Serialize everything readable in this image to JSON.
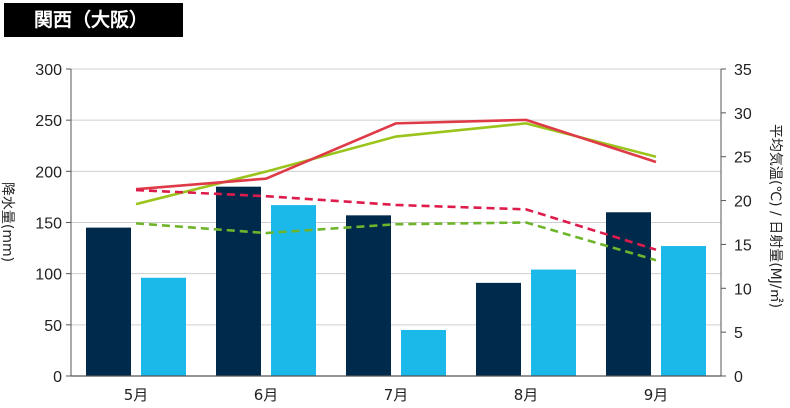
{
  "header": {
    "title": "関西（大阪）"
  },
  "chart_data": {
    "type": "bar+line",
    "title": "関西（大阪）",
    "categories": [
      "5月",
      "6月",
      "7月",
      "8月",
      "9月"
    ],
    "y_left": {
      "label": "降水量(mm)",
      "range": [
        0,
        300
      ],
      "ticks": [
        0,
        50,
        100,
        150,
        200,
        250,
        300
      ]
    },
    "y_right": {
      "label": "平均気温(℃) / 日射量(MJ/㎡)",
      "range": [
        0,
        35
      ],
      "ticks": [
        0,
        5,
        10,
        15,
        20,
        25,
        30,
        35
      ]
    },
    "grid": "horizontal",
    "bar_series": [
      {
        "values": [
          145,
          185,
          157,
          91,
          160
        ],
        "color": "#002a4c",
        "axis": "left"
      },
      {
        "values": [
          96,
          167,
          45,
          104,
          127
        ],
        "color": "#1bb8ea",
        "axis": "left"
      }
    ],
    "line_series": [
      {
        "values": [
          19.6,
          23.3,
          27.3,
          28.8,
          25.0
        ],
        "color": "#9ac41b",
        "style": "solid",
        "axis": "right"
      },
      {
        "values": [
          21.3,
          22.5,
          28.8,
          29.2,
          24.4
        ],
        "color": "#df3a47",
        "style": "solid",
        "axis": "right"
      },
      {
        "values": [
          21.2,
          20.5,
          19.5,
          19.0,
          14.4
        ],
        "color": "#dd1c4c",
        "style": "dashed",
        "axis": "right"
      },
      {
        "values": [
          17.4,
          16.3,
          17.3,
          17.5,
          13.2
        ],
        "color": "#6fb52c",
        "style": "dashed",
        "axis": "right"
      }
    ]
  }
}
